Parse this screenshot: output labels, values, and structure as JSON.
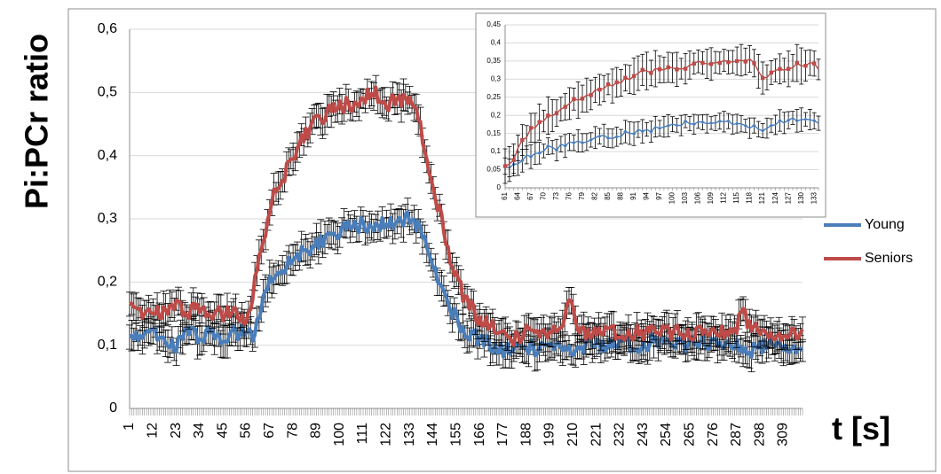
{
  "chart_data": [
    {
      "type": "line",
      "ylabel": "Pi:PCr ratio",
      "xlabel": "t [s]",
      "ylim": [
        0,
        0.6
      ],
      "yticks": [
        "0",
        "0,1",
        "0,2",
        "0,3",
        "0,4",
        "0,5",
        "0,6"
      ],
      "xtick_labels": [
        "1",
        "12",
        "23",
        "34",
        "45",
        "56",
        "67",
        "78",
        "89",
        "100",
        "111",
        "122",
        "133",
        "144",
        "155",
        "166",
        "177",
        "188",
        "199",
        "210",
        "221",
        "232",
        "243",
        "254",
        "265",
        "276",
        "287",
        "298",
        "309"
      ],
      "xlim": [
        1,
        318
      ],
      "grid": "horizontal",
      "legend_position": "right",
      "series": [
        {
          "name": "Young",
          "color": "#4a7ebb",
          "x": [
            1,
            6,
            12,
            18,
            23,
            28,
            34,
            40,
            45,
            50,
            56,
            59,
            62,
            65,
            67,
            70,
            73,
            78,
            83,
            89,
            95,
            100,
            105,
            111,
            117,
            122,
            127,
            133,
            137,
            140,
            144,
            148,
            152,
            155,
            160,
            166,
            172,
            177,
            183,
            188,
            194,
            199,
            205,
            210,
            216,
            221,
            227,
            232,
            238,
            243,
            249,
            254,
            260,
            265,
            271,
            276,
            282,
            287,
            293,
            298,
            304,
            309,
            314
          ],
          "y": [
            0.12,
            0.11,
            0.12,
            0.11,
            0.1,
            0.12,
            0.11,
            0.12,
            0.11,
            0.12,
            0.12,
            0.11,
            0.15,
            0.18,
            0.2,
            0.22,
            0.22,
            0.24,
            0.25,
            0.26,
            0.27,
            0.28,
            0.29,
            0.29,
            0.29,
            0.29,
            0.3,
            0.3,
            0.29,
            0.27,
            0.23,
            0.19,
            0.16,
            0.14,
            0.12,
            0.11,
            0.1,
            0.09,
            0.1,
            0.1,
            0.09,
            0.1,
            0.1,
            0.08,
            0.1,
            0.1,
            0.1,
            0.1,
            0.1,
            0.1,
            0.11,
            0.1,
            0.1,
            0.1,
            0.11,
            0.1,
            0.1,
            0.1,
            0.09,
            0.1,
            0.1,
            0.1,
            0.1
          ],
          "error": 0.02
        },
        {
          "name": "Seniors",
          "color": "#be4b48",
          "x": [
            1,
            6,
            12,
            18,
            23,
            28,
            34,
            40,
            45,
            50,
            56,
            58,
            60,
            62,
            65,
            67,
            70,
            73,
            76,
            78,
            81,
            83,
            86,
            89,
            92,
            95,
            100,
            105,
            111,
            117,
            122,
            127,
            133,
            136,
            138,
            140,
            142,
            144,
            147,
            150,
            152,
            155,
            158,
            162,
            166,
            172,
            177,
            183,
            188,
            194,
            199,
            205,
            208,
            211,
            214,
            221,
            227,
            232,
            238,
            243,
            249,
            254,
            260,
            265,
            271,
            276,
            282,
            287,
            290,
            293,
            298,
            304,
            309,
            314
          ],
          "y": [
            0.16,
            0.15,
            0.16,
            0.15,
            0.16,
            0.15,
            0.16,
            0.15,
            0.15,
            0.15,
            0.14,
            0.15,
            0.2,
            0.25,
            0.28,
            0.32,
            0.35,
            0.36,
            0.39,
            0.4,
            0.42,
            0.43,
            0.44,
            0.46,
            0.46,
            0.47,
            0.48,
            0.48,
            0.49,
            0.5,
            0.48,
            0.49,
            0.49,
            0.48,
            0.45,
            0.41,
            0.37,
            0.35,
            0.31,
            0.27,
            0.24,
            0.21,
            0.18,
            0.16,
            0.14,
            0.13,
            0.12,
            0.11,
            0.12,
            0.12,
            0.12,
            0.12,
            0.18,
            0.13,
            0.12,
            0.12,
            0.12,
            0.12,
            0.12,
            0.12,
            0.12,
            0.12,
            0.12,
            0.12,
            0.12,
            0.12,
            0.12,
            0.13,
            0.16,
            0.13,
            0.12,
            0.12,
            0.12,
            0.12
          ],
          "error": 0.02
        }
      ]
    },
    {
      "type": "line",
      "ylim": [
        0,
        0.45
      ],
      "yticks": [
        "0",
        "0,05",
        "0,1",
        "0,15",
        "0,2",
        "0,25",
        "0,3",
        "0,35",
        "0,4",
        "0,45"
      ],
      "xtick_labels": [
        "61",
        "64",
        "67",
        "70",
        "73",
        "76",
        "79",
        "82",
        "85",
        "88",
        "91",
        "94",
        "97",
        "100",
        "103",
        "106",
        "109",
        "112",
        "115",
        "118",
        "121",
        "124",
        "127",
        "130",
        "133"
      ],
      "xlim": [
        61,
        134
      ],
      "grid": "horizontal",
      "series": [
        {
          "color": "#4a7ebb",
          "x": [
            61,
            63,
            65,
            67,
            69,
            71,
            73,
            75,
            77,
            79,
            81,
            83,
            85,
            87,
            89,
            91,
            93,
            95,
            97,
            99,
            101,
            103,
            105,
            107,
            109,
            111,
            113,
            115,
            117,
            119,
            121,
            123,
            125,
            127,
            129,
            131,
            133,
            134
          ],
          "y": [
            0.06,
            0.06,
            0.08,
            0.09,
            0.1,
            0.11,
            0.11,
            0.12,
            0.13,
            0.13,
            0.13,
            0.14,
            0.14,
            0.14,
            0.15,
            0.15,
            0.16,
            0.16,
            0.17,
            0.17,
            0.17,
            0.18,
            0.18,
            0.18,
            0.18,
            0.18,
            0.18,
            0.18,
            0.17,
            0.17,
            0.16,
            0.17,
            0.18,
            0.19,
            0.19,
            0.19,
            0.19,
            0.18
          ],
          "error": 0.025
        },
        {
          "color": "#be4b48",
          "x": [
            61,
            63,
            65,
            67,
            69,
            71,
            73,
            75,
            77,
            79,
            81,
            83,
            85,
            87,
            89,
            91,
            93,
            95,
            97,
            99,
            101,
            103,
            105,
            107,
            109,
            111,
            113,
            115,
            117,
            119,
            121,
            123,
            125,
            127,
            129,
            131,
            133,
            134
          ],
          "y": [
            0.06,
            0.08,
            0.13,
            0.16,
            0.18,
            0.2,
            0.21,
            0.22,
            0.24,
            0.25,
            0.26,
            0.27,
            0.28,
            0.29,
            0.3,
            0.31,
            0.32,
            0.32,
            0.33,
            0.33,
            0.33,
            0.33,
            0.34,
            0.35,
            0.34,
            0.35,
            0.35,
            0.35,
            0.35,
            0.35,
            0.3,
            0.32,
            0.33,
            0.33,
            0.34,
            0.34,
            0.34,
            0.33
          ],
          "error": 0.04
        }
      ]
    }
  ]
}
